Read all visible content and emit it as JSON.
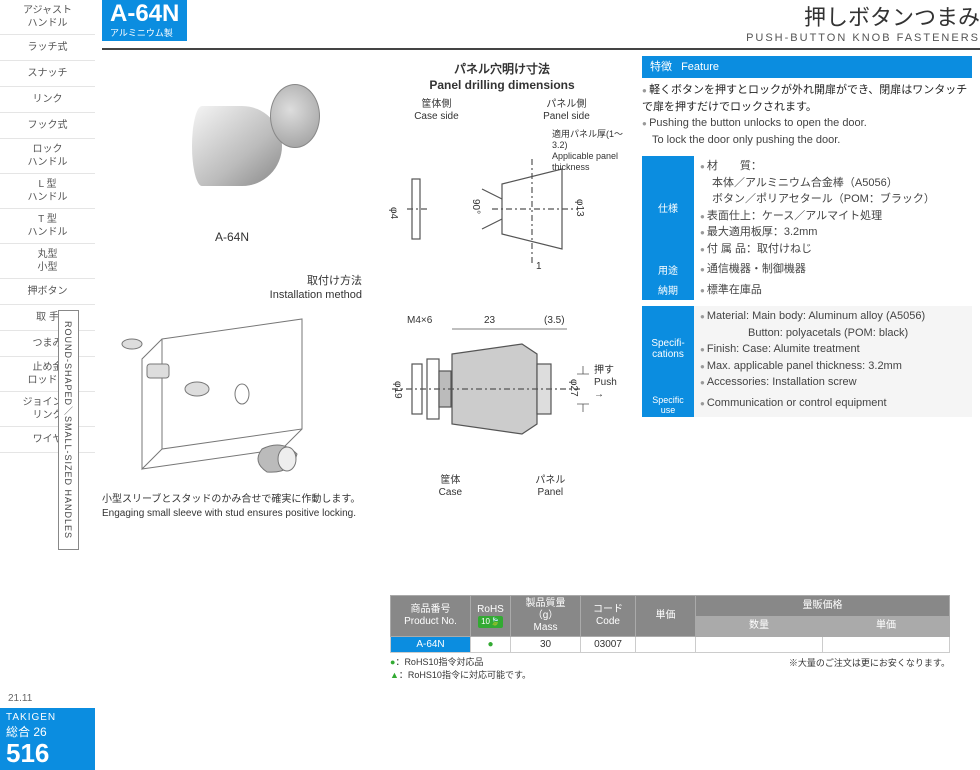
{
  "sidebar": {
    "items": [
      "アジャスト\nハンドル",
      "ラッチ式",
      "スナッチ",
      "リンク",
      "フック式",
      "ロック\nハンドル",
      "L 型\nハンドル",
      "T 型\nハンドル",
      "丸型\n小型",
      "押ボタン",
      "取 手",
      "つまみ",
      "止め金\nロッド棒",
      "ジョイント\nリンク",
      "ワイヤ"
    ],
    "vtab": "ROUND-SHAPED／SMALL-SIZED HANDLES",
    "date": "21.11",
    "brand": "TAKIGEN",
    "sougou": "総合 26",
    "page": "516"
  },
  "header": {
    "code": "A-64N",
    "material_jp": "アルミニウム製",
    "title_jp": "押しボタンつまみ",
    "title_en": "PUSH-BUTTON KNOB FASTENERS"
  },
  "photo_caption": "A-64N",
  "install": {
    "title_jp": "取付け方法",
    "title_en": "Installation method",
    "note_jp": "小型スリーブとスタッドのかみ合せで確実に作動します。",
    "note_en": "Engaging small sleeve with stud ensures positive locking."
  },
  "drill": {
    "title_jp": "パネル穴明け寸法",
    "title_en": "Panel drilling dimensions",
    "case_side_jp": "筐体側",
    "case_side_en": "Case side",
    "panel_side_jp": "パネル側",
    "panel_side_en": "Panel side",
    "apt_jp": "適用パネル厚(1〜3.2)",
    "apt_en": "Applicable panel thickness",
    "phi4": "φ4",
    "angle": "90°",
    "phi13": "φ13",
    "one": "1"
  },
  "side": {
    "m4": "M4×6",
    "d23": "23",
    "d35": "(3.5)",
    "phi19": "φ19",
    "phi27": "φ27",
    "push_jp": "押す",
    "push_en": "Push",
    "case_jp": "筐体",
    "case_en": "Case",
    "panel_jp": "パネル",
    "panel_en": "Panel"
  },
  "feature": {
    "heading_jp": "特徴",
    "heading_en": "Feature",
    "jp1": "軽くボタンを押すとロックが外れ開扉ができ、閉扉はワンタッチで扉を押すだけでロックされます。",
    "en1": "Pushing the button unlocks to open the door.",
    "en2": "To lock the door only pushing the door."
  },
  "spec": {
    "shiyou": "仕様",
    "youto": "用途",
    "nouki": "納期",
    "spec_en": "Specifi-\ncations",
    "specuse_en": "Specific use",
    "mat_label": "材　　質：",
    "mat_body": "本体／アルミニウム合金棒（A5056）",
    "mat_button": "ボタン／ポリアセタール（POM：ブラック）",
    "finish": "表面仕上：ケース／アルマイト処理",
    "maxthick": "最大適用板厚：3.2mm",
    "accessory": "付 属 品：取付けねじ",
    "use_jp": "通信機器・制御機器",
    "stock": "標準在庫品",
    "en_mat": "Material: Main body: Aluminum alloy (A5056)",
    "en_btn": "Button: polyacetals (POM: black)",
    "en_finish": "Finish: Case: Alumite treatment",
    "en_max": "Max. applicable panel thickness: 3.2mm",
    "en_acc": "Accessories: Installation screw",
    "en_use": "Communication or control equipment"
  },
  "table": {
    "h_prod_jp": "商品番号",
    "h_prod_en": "Product No.",
    "h_rohs": "RoHS",
    "h_rohs_sub": "10",
    "h_mass_jp": "製品質量（g）",
    "h_mass_en": "Mass",
    "h_code_jp": "コード",
    "h_code_en": "Code",
    "h_price": "単価",
    "h_bulk": "量販価格",
    "h_qty": "数量",
    "h_uprice": "単価",
    "row_code": "A-64N",
    "row_mass": "30",
    "row_codenum": "03007",
    "note1": "：RoHS10指令対応品",
    "note2": "：RoHS10指令に対応可能です。",
    "bulk_note": "※大量のご注文は更にお安くなります。"
  }
}
